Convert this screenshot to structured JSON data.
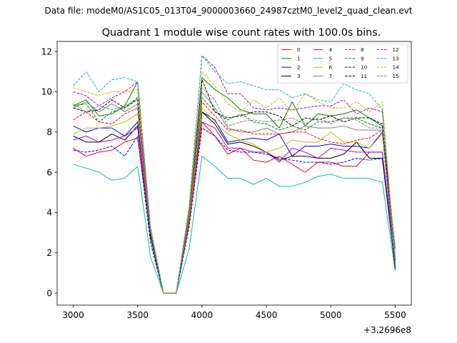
{
  "header": {
    "suptitle": "Data file: modeM0/AS1C05_013T04_9000003660_24987cztM0_level2_quad_clean.evt"
  },
  "chart_data": {
    "type": "line",
    "title": "Quadrant 1 module wise count rates with 100.0s bins.",
    "xlabel": "",
    "ylabel": "",
    "x_offset_label": "+3.2696e8",
    "xlim": [
      2875,
      5625
    ],
    "ylim": [
      -0.6,
      12.5
    ],
    "xticks": [
      3000,
      3500,
      4000,
      4500,
      5000,
      5500
    ],
    "yticks": [
      0,
      2,
      4,
      6,
      8,
      10,
      12
    ],
    "grid": false,
    "legend": {
      "placement": "top-right",
      "columns": 4
    },
    "x": [
      3000,
      3100,
      3200,
      3300,
      3400,
      3500,
      3600,
      3700,
      3800,
      3900,
      4000,
      4100,
      4200,
      4300,
      4400,
      4500,
      4600,
      4700,
      4800,
      4900,
      5000,
      5100,
      5200,
      5300,
      5400,
      5500
    ],
    "series": [
      {
        "name": "0",
        "color": "#ff0000",
        "dash": "solid",
        "values": [
          7.2,
          6.8,
          7.0,
          7.1,
          7.5,
          7.7,
          3.0,
          0.0,
          0.0,
          3.5,
          8.5,
          7.8,
          6.9,
          7.2,
          6.6,
          6.5,
          6.8,
          6.4,
          6.0,
          6.5,
          6.5,
          6.3,
          6.3,
          7.0,
          7.0,
          1.3
        ]
      },
      {
        "name": "1",
        "color": "#008000",
        "dash": "solid",
        "values": [
          9.3,
          9.6,
          8.8,
          8.9,
          9.3,
          10.5,
          3.2,
          0.0,
          0.0,
          4.0,
          10.7,
          10.1,
          9.7,
          9.1,
          8.9,
          8.9,
          8.2,
          9.5,
          8.3,
          8.9,
          8.8,
          8.9,
          9.1,
          8.7,
          8.3,
          2.2
        ]
      },
      {
        "name": "2",
        "color": "#0000ff",
        "dash": "solid",
        "values": [
          8.3,
          8.0,
          8.2,
          8.2,
          7.8,
          8.5,
          2.8,
          0.0,
          0.0,
          3.7,
          9.0,
          8.6,
          7.5,
          7.6,
          7.7,
          7.6,
          7.9,
          6.8,
          7.3,
          7.3,
          7.4,
          7.3,
          7.3,
          7.2,
          8.0,
          1.1
        ]
      },
      {
        "name": "3",
        "color": "#000000",
        "dash": "solid",
        "values": [
          7.8,
          7.5,
          7.5,
          7.9,
          7.6,
          8.3,
          2.8,
          0.0,
          0.0,
          3.6,
          9.0,
          8.4,
          7.4,
          7.5,
          7.3,
          7.0,
          6.6,
          6.8,
          6.8,
          6.7,
          6.7,
          6.9,
          7.5,
          6.7,
          6.7,
          1.3
        ]
      },
      {
        "name": "4",
        "color": "#bf00bf",
        "dash": "solid",
        "values": [
          7.6,
          7.8,
          7.5,
          7.6,
          7.8,
          8.2,
          3.0,
          0.0,
          0.0,
          3.7,
          8.5,
          8.2,
          7.2,
          7.2,
          7.0,
          7.0,
          6.5,
          7.2,
          7.0,
          6.7,
          7.2,
          7.1,
          7.0,
          7.0,
          7.0,
          1.4
        ]
      },
      {
        "name": "5",
        "color": "#00bfbf",
        "dash": "solid",
        "values": [
          6.4,
          6.2,
          6.0,
          5.6,
          5.7,
          6.3,
          1.8,
          0.0,
          0.0,
          2.2,
          6.8,
          6.3,
          5.7,
          5.7,
          5.4,
          5.7,
          5.3,
          5.3,
          5.5,
          5.8,
          5.9,
          5.7,
          5.7,
          5.7,
          5.5,
          1.1
        ]
      },
      {
        "name": "6",
        "color": "#bfbf00",
        "dash": "solid",
        "values": [
          7.9,
          8.2,
          8.2,
          8.3,
          8.5,
          8.9,
          3.0,
          0.0,
          0.0,
          3.7,
          9.2,
          8.5,
          7.9,
          7.6,
          7.4,
          7.0,
          7.2,
          7.6,
          7.5,
          7.5,
          8.0,
          7.5,
          7.5,
          7.2,
          7.9,
          1.4
        ]
      },
      {
        "name": "7",
        "color": "#808080",
        "dash": "solid",
        "values": [
          9.2,
          9.5,
          9.0,
          9.4,
          9.0,
          9.4,
          3.1,
          0.0,
          0.0,
          3.9,
          10.0,
          9.2,
          8.2,
          8.0,
          8.0,
          8.2,
          7.9,
          8.0,
          8.3,
          8.2,
          8.2,
          8.3,
          8.1,
          8.1,
          8.1,
          1.6
        ]
      },
      {
        "name": "8",
        "color": "#ff0000",
        "dash": "dashed",
        "values": [
          8.6,
          9.0,
          8.5,
          8.4,
          8.9,
          9.2,
          3.0,
          0.0,
          0.0,
          3.9,
          9.5,
          8.8,
          8.1,
          8.1,
          7.9,
          7.9,
          7.9,
          8.0,
          8.0,
          7.7,
          7.5,
          7.4,
          7.6,
          7.7,
          8.1,
          1.5
        ]
      },
      {
        "name": "9",
        "color": "#008000",
        "dash": "dashed",
        "values": [
          9.3,
          9.4,
          8.5,
          9.0,
          9.2,
          9.6,
          3.1,
          0.0,
          0.0,
          4.0,
          9.7,
          9.0,
          8.6,
          8.9,
          8.5,
          8.4,
          8.1,
          8.3,
          8.1,
          8.5,
          8.5,
          8.7,
          8.7,
          8.4,
          8.2,
          1.7
        ]
      },
      {
        "name": "10",
        "color": "#0000ff",
        "dash": "dashed",
        "values": [
          7.1,
          7.0,
          7.1,
          7.3,
          6.8,
          7.8,
          2.5,
          0.0,
          0.0,
          3.3,
          8.2,
          7.8,
          7.1,
          7.0,
          7.0,
          6.9,
          6.7,
          6.6,
          6.5,
          6.5,
          6.4,
          6.5,
          6.7,
          6.6,
          6.7,
          1.2
        ]
      },
      {
        "name": "11",
        "color": "#000000",
        "dash": "dashed",
        "values": [
          9.2,
          9.0,
          9.1,
          9.6,
          9.2,
          9.7,
          3.1,
          0.0,
          0.0,
          4.0,
          10.6,
          9.0,
          8.7,
          8.8,
          9.0,
          9.0,
          8.8,
          8.3,
          8.7,
          8.6,
          8.8,
          8.5,
          8.7,
          8.7,
          8.4,
          1.6
        ]
      },
      {
        "name": "12",
        "color": "#bf00bf",
        "dash": "dashed",
        "values": [
          10.0,
          9.8,
          9.3,
          9.7,
          10.0,
          10.5,
          3.3,
          0.0,
          0.0,
          4.3,
          11.8,
          11.2,
          9.9,
          9.9,
          9.2,
          9.1,
          9.2,
          9.1,
          9.2,
          9.3,
          9.3,
          9.6,
          8.9,
          9.2,
          9.0,
          1.8
        ]
      },
      {
        "name": "13",
        "color": "#00bfbf",
        "dash": "dashed",
        "values": [
          10.3,
          11.0,
          10.0,
          10.6,
          10.7,
          10.5,
          3.3,
          0.0,
          0.0,
          4.3,
          11.8,
          11.0,
          10.4,
          10.5,
          10.3,
          10.1,
          10.1,
          9.7,
          9.9,
          9.6,
          9.5,
          10.4,
          10.1,
          9.9,
          9.1,
          1.9
        ]
      },
      {
        "name": "14",
        "color": "#bfbf00",
        "dash": "dashed",
        "values": [
          10.2,
          10.0,
          9.8,
          10.0,
          10.0,
          10.1,
          3.2,
          0.0,
          0.0,
          4.2,
          11.0,
          10.3,
          9.4,
          9.0,
          9.6,
          9.2,
          9.7,
          9.0,
          9.9,
          9.5,
          9.2,
          9.2,
          9.5,
          9.0,
          9.5,
          1.7
        ]
      },
      {
        "name": "15",
        "color": "#808080",
        "dash": "dashed",
        "values": [
          9.4,
          9.0,
          9.3,
          9.1,
          9.3,
          9.6,
          3.1,
          0.0,
          0.0,
          4.0,
          10.2,
          9.6,
          8.3,
          8.5,
          8.6,
          8.5,
          8.6,
          8.7,
          8.4,
          8.7,
          8.4,
          8.7,
          8.6,
          8.2,
          8.2,
          1.6
        ]
      }
    ]
  }
}
